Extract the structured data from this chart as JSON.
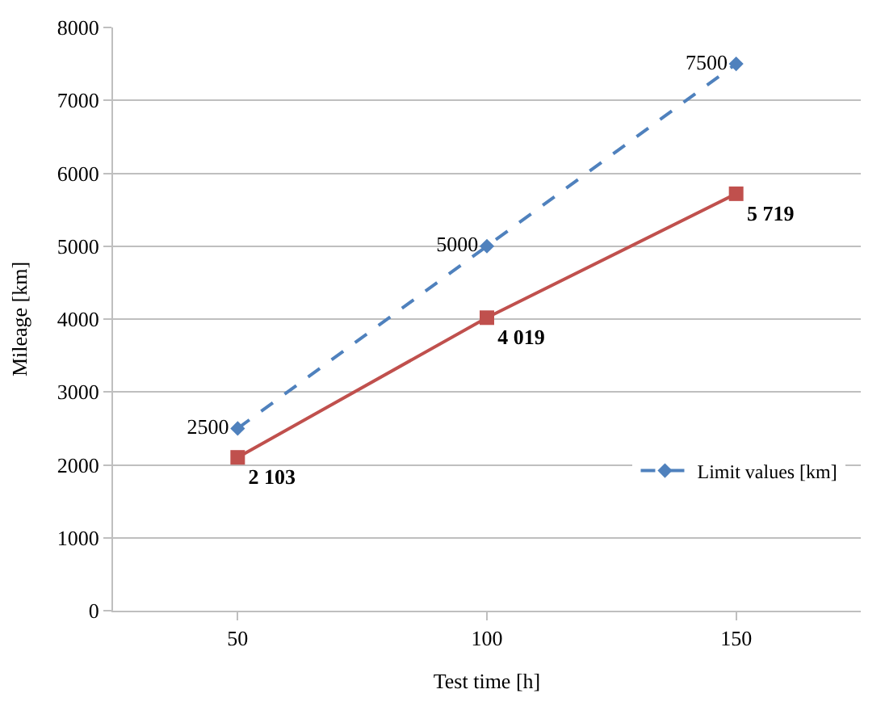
{
  "chart_data": {
    "type": "line",
    "xlabel": "Test time [h]",
    "ylabel": "Mileage [km]",
    "categories": [
      "50",
      "100",
      "150"
    ],
    "series": [
      {
        "name": "Limit values [km]",
        "color": "#4f81bd",
        "values": [
          2500,
          5000,
          7500
        ],
        "marker": "diamond",
        "line_style": "dashed",
        "value_labels": [
          "2500",
          "5000",
          "7500"
        ]
      },
      {
        "color": "#c0504d",
        "values": [
          2103,
          4019,
          5719
        ],
        "marker": "square",
        "line_style": "solid",
        "value_labels": [
          "2 103",
          "4 019",
          "5 719"
        ]
      }
    ],
    "ylim": [
      0,
      8000
    ],
    "yticks": [
      0,
      1000,
      2000,
      3000,
      4000,
      5000,
      6000,
      7000,
      8000
    ],
    "grid": "y",
    "legend": "bottom right"
  }
}
